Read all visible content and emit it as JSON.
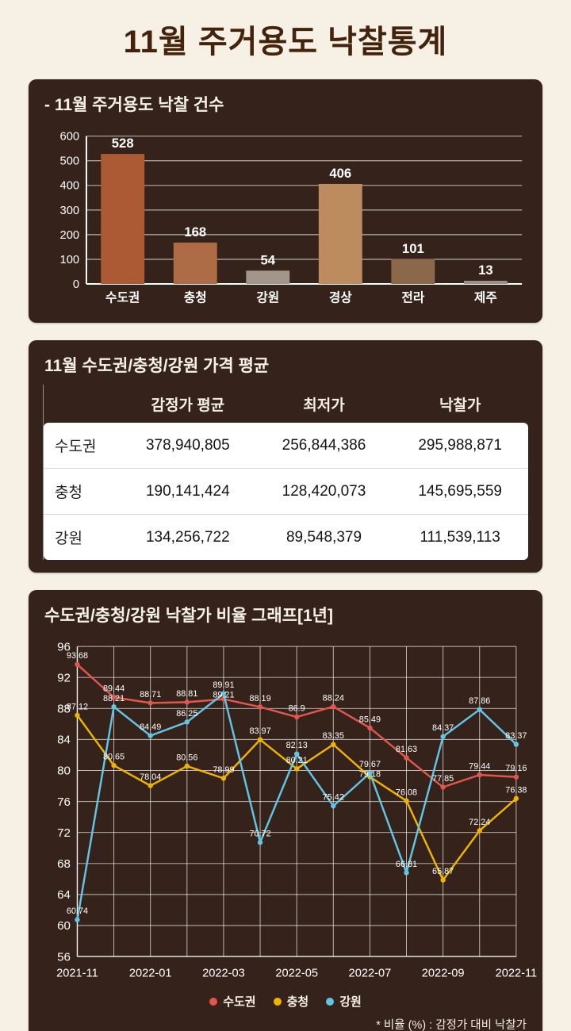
{
  "page_title": "11월 주거용도 낙찰통계",
  "colors": {
    "background": "#f6f1e4",
    "title_text": "#44220b",
    "panel_background": "#35221a",
    "series_red": "#e2574c",
    "series_yellow": "#f0b400",
    "series_blue": "#63c5e5"
  },
  "table": {
    "title": "11월 수도권/충청/강원 가격 평균",
    "col_headers": [
      "감정가 평균",
      "최저가",
      "낙찰가"
    ],
    "rows": [
      {
        "label": "수도권",
        "values": [
          "378,940,805",
          "256,844,386",
          "295,988,871"
        ]
      },
      {
        "label": "충청",
        "values": [
          "190,141,424",
          "128,420,073",
          "145,695,559"
        ]
      },
      {
        "label": "강원",
        "values": [
          "134,256,722",
          "89,548,379",
          "111,539,113"
        ]
      }
    ]
  },
  "chart_data": [
    {
      "type": "bar",
      "title": "- 11월 주거용도 낙찰 건수",
      "categories": [
        "수도권",
        "충청",
        "강원",
        "경상",
        "전라",
        "제주"
      ],
      "values": [
        528,
        168,
        54,
        406,
        101,
        13
      ],
      "bar_colors": [
        "#ab5a33",
        "#ae6c46",
        "#a2968a",
        "#bd8c5e",
        "#8c684a",
        "#99908a"
      ],
      "ylim": [
        0,
        600
      ],
      "ytick_step": 100,
      "grid": true,
      "xlabel": "",
      "ylabel": ""
    },
    {
      "type": "line",
      "title": "수도권/충청/강원 낙찰가 비율 그래프[1년]",
      "x": [
        "2021-11",
        "2021-12",
        "2022-01",
        "2022-02",
        "2022-03",
        "2022-04",
        "2022-05",
        "2022-06",
        "2022-07",
        "2022-08",
        "2022-09",
        "2022-10",
        "2022-11"
      ],
      "x_tick_labels": [
        "2021-11",
        "2022-01",
        "2022-03",
        "2022-05",
        "2022-07",
        "2022-09",
        "2022-11"
      ],
      "series": [
        {
          "name": "수도권",
          "color": "#e2574c",
          "values": [
            93.68,
            89.44,
            88.71,
            88.81,
            89.21,
            88.19,
            86.9,
            88.24,
            85.49,
            81.63,
            77.85,
            79.44,
            79.16
          ]
        },
        {
          "name": "충청",
          "color": "#f0b400",
          "values": [
            87.12,
            80.65,
            78.04,
            80.56,
            78.99,
            83.97,
            80.21,
            83.35,
            79.18,
            76.08,
            65.87,
            72.24,
            76.38
          ]
        },
        {
          "name": "강원",
          "color": "#63c5e5",
          "values": [
            60.74,
            88.21,
            84.49,
            86.25,
            89.91,
            70.72,
            82.13,
            75.42,
            79.67,
            66.81,
            84.37,
            87.86,
            83.37
          ]
        }
      ],
      "ylim": [
        56,
        96
      ],
      "ytick_step": 4,
      "grid": true,
      "legend_position": "bottom",
      "footnote": "* 비율 (%) : 감정가 대비 낙찰가"
    }
  ]
}
